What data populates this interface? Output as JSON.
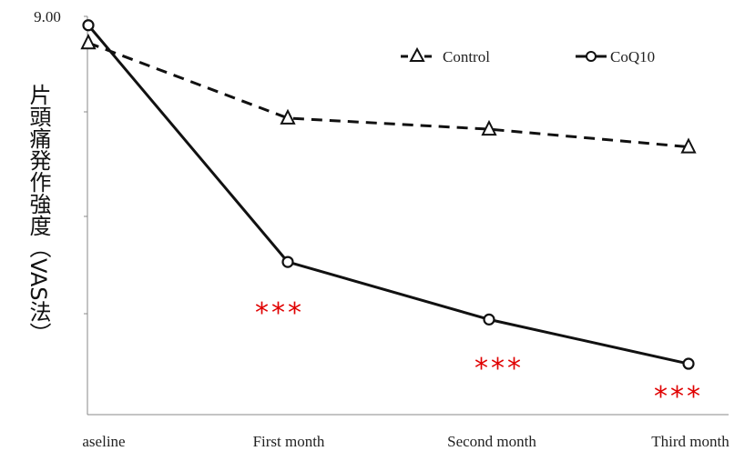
{
  "chart_data": {
    "type": "line",
    "categories": [
      "Baseline",
      "First month",
      "Second month",
      "Third month"
    ],
    "category_labels_shown": [
      "aseline",
      "First month",
      "Second month",
      "Third month"
    ],
    "series": [
      {
        "name": "Control",
        "marker": "triangle",
        "line_style": "dashed",
        "values": [
          8.4,
          6.7,
          6.45,
          6.05
        ]
      },
      {
        "name": "CoQ10",
        "marker": "circle",
        "line_style": "solid",
        "values": [
          8.8,
          3.45,
          2.15,
          1.15
        ]
      }
    ],
    "ylabel": "片頭痛発作強度（VAS法）",
    "ytick_top": "9.00",
    "ylim": [
      0,
      9
    ],
    "significance": [
      "***",
      "***",
      "***"
    ],
    "significance_color": "#e00000",
    "legend_position": "top-right",
    "grid": false
  }
}
